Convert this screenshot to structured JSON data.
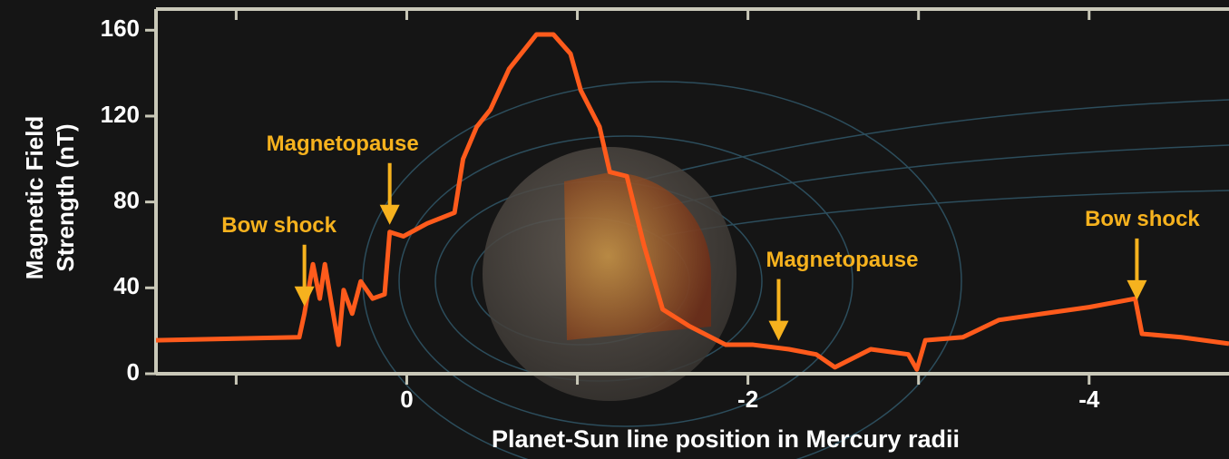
{
  "chart_data": {
    "type": "line",
    "xlabel": "Planet-Sun line position in Mercury radii",
    "ylabel": [
      "Magnetic Field",
      "Strength (nT)"
    ],
    "xlim": [
      1.47,
      -4.82
    ],
    "ylim": [
      0,
      169
    ],
    "xticks": [
      0,
      -2,
      -4
    ],
    "xminor_ticks": [
      1,
      -1,
      -3
    ],
    "yticks": [
      0,
      40,
      80,
      120,
      160
    ],
    "x": [
      1.47,
      0.63,
      0.6,
      0.55,
      0.51,
      0.48,
      0.44,
      0.4,
      0.37,
      0.32,
      0.27,
      0.2,
      0.13,
      0.1,
      0.02,
      -0.12,
      -0.28,
      -0.33,
      -0.41,
      -0.49,
      -0.6,
      -0.76,
      -0.86,
      -0.96,
      -1.02,
      -1.13,
      -1.19,
      -1.29,
      -1.39,
      -1.5,
      -1.66,
      -1.87,
      -2.03,
      -2.24,
      -2.4,
      -2.51,
      -2.72,
      -2.94,
      -2.99,
      -3.04,
      -3.26,
      -3.47,
      -3.73,
      -4.0,
      -4.27,
      -4.31,
      -4.54,
      -4.82
    ],
    "series": [
      {
        "color": "#ff5b1c",
        "values": [
          15.6,
          17,
          28,
          51,
          35,
          51,
          32,
          13.5,
          39,
          28,
          43,
          35,
          37,
          66,
          64,
          70,
          75,
          100,
          115,
          123,
          142,
          158,
          158,
          149,
          132,
          115,
          94,
          92,
          60,
          30,
          22,
          13.5,
          13.5,
          11.4,
          9,
          3,
          11.4,
          9,
          2,
          15.6,
          17,
          25,
          28,
          31,
          35,
          18.6,
          17,
          14
        ]
      }
    ],
    "annotations": [
      {
        "text": "Bow shock",
        "x": 0.6
      },
      {
        "text": "Magnetopause",
        "x": 0.1
      },
      {
        "text": "Magnetopause",
        "x": -2.18
      },
      {
        "text": "Bow shock",
        "x": -4.28
      }
    ],
    "annotation_color": "#f6b21e"
  }
}
